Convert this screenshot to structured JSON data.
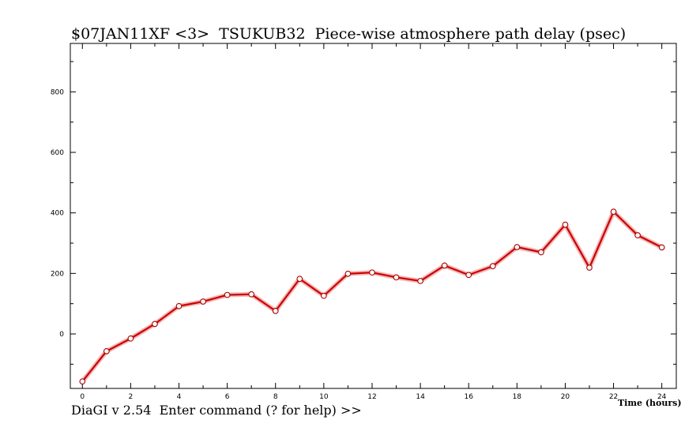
{
  "title": "$07JAN11XF <3>  TSUKUB32  Piece-wise atmosphere path delay (psec)",
  "status_line": "DiaGI v 2.54  Enter command (? for help) >>",
  "chart_data": {
    "type": "line",
    "title": "$07JAN11XF <3>  TSUKUB32  Piece-wise atmosphere path delay (psec)",
    "xlabel": "Time (hours)",
    "ylabel": "",
    "xlim": [
      -0.5,
      24.6
    ],
    "ylim": [
      -180,
      960
    ],
    "x_ticks": [
      0,
      2,
      4,
      6,
      8,
      10,
      12,
      14,
      16,
      18,
      20,
      22,
      24
    ],
    "y_ticks": [
      0,
      200,
      400,
      600,
      800
    ],
    "grid": false,
    "series": [
      {
        "color": "#cc0000",
        "x": [
          0,
          1,
          2,
          3,
          4,
          5,
          6,
          7,
          8,
          9,
          10,
          11,
          12,
          13,
          14,
          15,
          16,
          17,
          18,
          19,
          20,
          21,
          22,
          23,
          24
        ],
        "y": [
          -157,
          -57,
          -15,
          33,
          92,
          107,
          129,
          131,
          76,
          182,
          126,
          199,
          203,
          187,
          175,
          226,
          195,
          224,
          287,
          270,
          361,
          219,
          404,
          326,
          286
        ]
      }
    ]
  }
}
